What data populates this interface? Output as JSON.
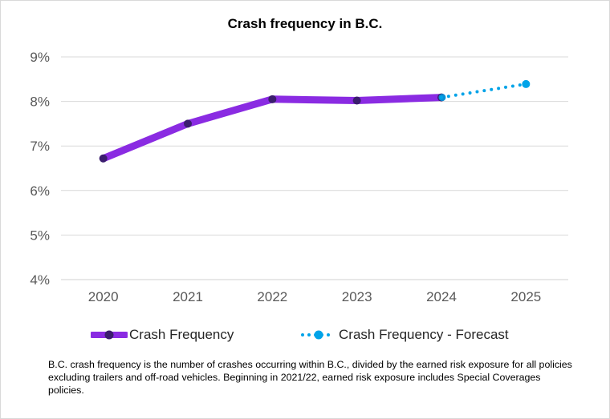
{
  "chart_data": {
    "type": "line",
    "title": "Crash frequency in B.C.",
    "categories": [
      "2020",
      "2021",
      "2022",
      "2023",
      "2024",
      "2025"
    ],
    "y_ticks": [
      "4%",
      "5%",
      "6%",
      "7%",
      "8%",
      "9%"
    ],
    "ylim": [
      4,
      9
    ],
    "y_unit": "%",
    "grid": "horizontal",
    "legend_position": "bottom",
    "series": [
      {
        "name": "Crash Frequency",
        "color": "#8a2be2",
        "marker_color": "#3b1d6e",
        "style": "solid",
        "points": [
          {
            "x": "2020",
            "y": 6.72
          },
          {
            "x": "2021",
            "y": 7.5
          },
          {
            "x": "2022",
            "y": 8.05
          },
          {
            "x": "2023",
            "y": 8.02
          },
          {
            "x": "2024",
            "y": 8.09
          }
        ]
      },
      {
        "name": "Crash Frequency - Forecast",
        "color": "#00a3e8",
        "marker_color": "#00a3e8",
        "style": "dotted",
        "points": [
          {
            "x": "2024",
            "y": 8.09
          },
          {
            "x": "2025",
            "y": 8.39
          }
        ]
      }
    ]
  },
  "footnote": "B.C. crash frequency is the number of crashes occurring within B.C., divided by the earned risk exposure for all policies excluding trailers and off-road vehicles. Beginning in 2021/22, earned risk exposure includes Special Coverages policies."
}
